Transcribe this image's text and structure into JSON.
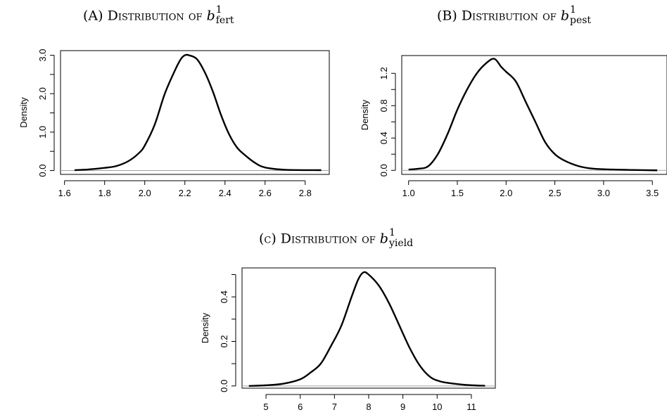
{
  "chart_data": [
    {
      "id": "a",
      "type": "line",
      "caption_prefix": "(A) Distribution of ",
      "symbol": "b",
      "superscript": "1",
      "subscript": "fert",
      "ylabel": "Density",
      "xlim": [
        1.58,
        2.92
      ],
      "ylim": [
        -0.1,
        3.12
      ],
      "x_ticks": [
        1.6,
        1.8,
        2.0,
        2.2,
        2.4,
        2.6,
        2.8
      ],
      "x_tick_labels": [
        "1.6",
        "1.8",
        "2.0",
        "2.2",
        "2.4",
        "2.6",
        "2.8"
      ],
      "y_ticks": [
        0.0,
        0.5,
        1.0,
        1.5,
        2.0,
        2.5,
        3.0
      ],
      "y_tick_labels": [
        "0.0",
        "",
        "1.0",
        "",
        "2.0",
        "",
        "3.0"
      ],
      "baseline": 0,
      "x": [
        1.65,
        1.72,
        1.8,
        1.86,
        1.92,
        1.97,
        2.0,
        2.05,
        2.1,
        2.15,
        2.18,
        2.2,
        2.22,
        2.26,
        2.3,
        2.34,
        2.38,
        2.42,
        2.46,
        2.5,
        2.55,
        2.6,
        2.7,
        2.88
      ],
      "y": [
        0.01,
        0.03,
        0.07,
        0.12,
        0.25,
        0.45,
        0.65,
        1.2,
        2.0,
        2.6,
        2.9,
        3.0,
        3.0,
        2.9,
        2.55,
        2.05,
        1.45,
        0.95,
        0.6,
        0.4,
        0.2,
        0.08,
        0.02,
        0.01
      ]
    },
    {
      "id": "b",
      "type": "line",
      "caption_prefix": "(B) Distribution of ",
      "symbol": "b",
      "superscript": "1",
      "subscript": "pest",
      "ylabel": "Density",
      "xlim": [
        0.93,
        3.65
      ],
      "ylim": [
        -0.05,
        1.42
      ],
      "x_ticks": [
        1.0,
        1.5,
        2.0,
        2.5,
        3.0,
        3.5
      ],
      "x_tick_labels": [
        "1.0",
        "1.5",
        "2.0",
        "2.5",
        "3.0",
        "3.5"
      ],
      "y_ticks": [
        0.0,
        0.2,
        0.4,
        0.6,
        0.8,
        1.0,
        1.2
      ],
      "y_tick_labels": [
        "0.0",
        "",
        "0.4",
        "",
        "0.8",
        "",
        "1.2"
      ],
      "baseline": 0,
      "x": [
        1.0,
        1.1,
        1.2,
        1.3,
        1.4,
        1.5,
        1.6,
        1.7,
        1.8,
        1.88,
        1.95,
        2.0,
        2.1,
        2.2,
        2.3,
        2.4,
        2.5,
        2.6,
        2.75,
        2.9,
        3.1,
        3.3,
        3.55
      ],
      "y": [
        0.01,
        0.02,
        0.05,
        0.2,
        0.45,
        0.75,
        1.0,
        1.2,
        1.33,
        1.38,
        1.28,
        1.22,
        1.1,
        0.85,
        0.6,
        0.35,
        0.2,
        0.12,
        0.05,
        0.02,
        0.01,
        0.005,
        0.0
      ]
    },
    {
      "id": "c",
      "type": "line",
      "caption_prefix": "(c) Distribution of ",
      "symbol": "b",
      "superscript": "1",
      "subscript": "yield",
      "ylabel": "Density",
      "xlim": [
        4.3,
        11.7
      ],
      "ylim": [
        -0.01,
        0.53
      ],
      "x_ticks": [
        5,
        6,
        7,
        8,
        9,
        10,
        11
      ],
      "x_tick_labels": [
        "5",
        "6",
        "7",
        "8",
        "9",
        "10",
        "11"
      ],
      "y_ticks": [
        0.0,
        0.1,
        0.2,
        0.3,
        0.4,
        0.5
      ],
      "y_tick_labels": [
        "0.0",
        "",
        "0.2",
        "",
        "0.4",
        ""
      ],
      "baseline": 0,
      "x": [
        4.5,
        5.0,
        5.5,
        6.0,
        6.3,
        6.6,
        6.9,
        7.2,
        7.5,
        7.7,
        7.85,
        8.0,
        8.3,
        8.6,
        8.9,
        9.2,
        9.5,
        9.8,
        10.1,
        10.5,
        11.0,
        11.4
      ],
      "y": [
        0.0,
        0.003,
        0.01,
        0.03,
        0.06,
        0.1,
        0.18,
        0.27,
        0.4,
        0.48,
        0.51,
        0.5,
        0.45,
        0.37,
        0.27,
        0.17,
        0.09,
        0.04,
        0.02,
        0.01,
        0.003,
        0.001
      ]
    }
  ]
}
